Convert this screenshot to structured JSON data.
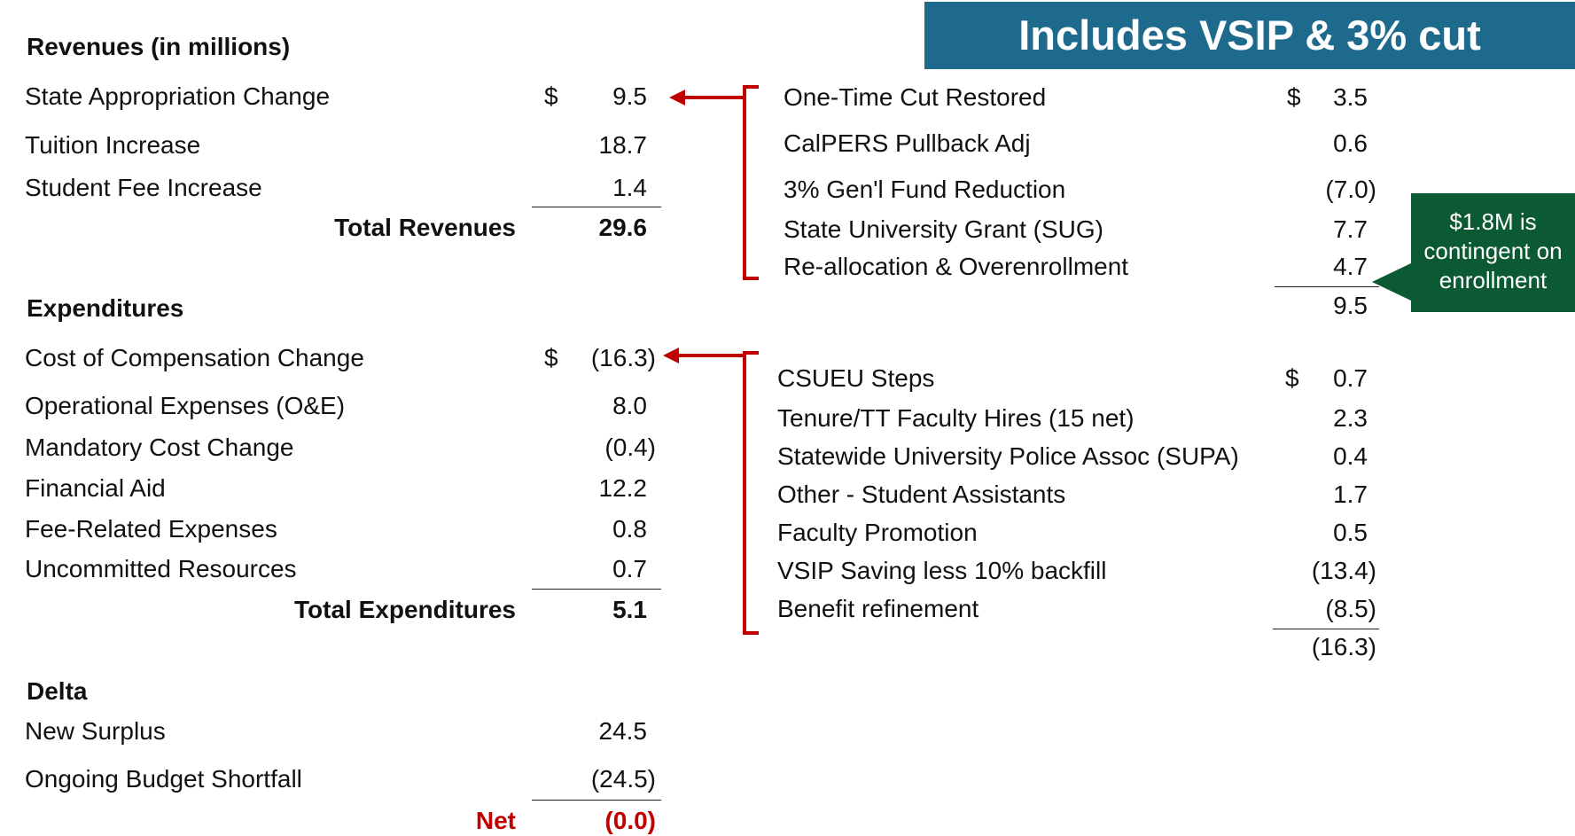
{
  "banner": "Includes VSIP & 3% cut",
  "note": {
    "line1": "$1.8M is",
    "line2": "contingent on",
    "line3": "enrollment"
  },
  "revenues": {
    "header": "Revenues (in millions)",
    "rows": [
      {
        "label": "State Appropriation Change",
        "dollar": "$",
        "value": "9.5"
      },
      {
        "label": "Tuition Increase",
        "value": "18.7"
      },
      {
        "label": "Student Fee Increase",
        "value": "1.4"
      }
    ],
    "total_label": "Total Revenues",
    "total_value": "29.6"
  },
  "expenditures": {
    "header": "Expenditures",
    "rows": [
      {
        "label": "Cost of Compensation Change",
        "dollar": "$",
        "value": "(16.3)"
      },
      {
        "label": "Operational Expenses (O&E)",
        "value": "8.0"
      },
      {
        "label": "Mandatory Cost Change",
        "value": "(0.4)"
      },
      {
        "label": "Financial Aid",
        "value": "12.2"
      },
      {
        "label": "Fee-Related Expenses",
        "value": "0.8"
      },
      {
        "label": "Uncommitted Resources",
        "value": "0.7"
      }
    ],
    "total_label": "Total Expenditures",
    "total_value": "5.1"
  },
  "delta": {
    "header": "Delta",
    "rows": [
      {
        "label": "New Surplus",
        "value": "24.5"
      },
      {
        "label": "Ongoing Budget Shortfall",
        "value": "(24.5)"
      }
    ],
    "net_label": "Net",
    "net_value": "(0.0)"
  },
  "appropriation_detail": {
    "rows": [
      {
        "label": "One-Time Cut Restored",
        "dollar": "$",
        "value": "3.5"
      },
      {
        "label": "CalPERS Pullback Adj",
        "value": "0.6"
      },
      {
        "label": "3% Gen'l Fund Reduction",
        "value": "(7.0)"
      },
      {
        "label": "State University Grant (SUG)",
        "value": "7.7"
      },
      {
        "label": "Re-allocation & Overenrollment",
        "value": "4.7"
      }
    ],
    "total": "9.5"
  },
  "compensation_detail": {
    "rows": [
      {
        "label": "CSUEU Steps",
        "dollar": "$",
        "value": "0.7"
      },
      {
        "label": "Tenure/TT Faculty Hires (15 net)",
        "value": "2.3"
      },
      {
        "label": "Statewide University Police Assoc (SUPA)",
        "value": "0.4"
      },
      {
        "label": "Other - Student Assistants",
        "value": "1.7"
      },
      {
        "label": "Faculty Promotion",
        "value": "0.5"
      },
      {
        "label": "VSIP Saving less 10% backfill",
        "value": "(13.4)"
      },
      {
        "label": "Benefit refinement",
        "value": "(8.5)"
      }
    ],
    "total": "(16.3)"
  },
  "colors": {
    "banner_bg": "#1e6a8c",
    "note_bg": "#0b5a34",
    "accent_red": "#c00000"
  }
}
